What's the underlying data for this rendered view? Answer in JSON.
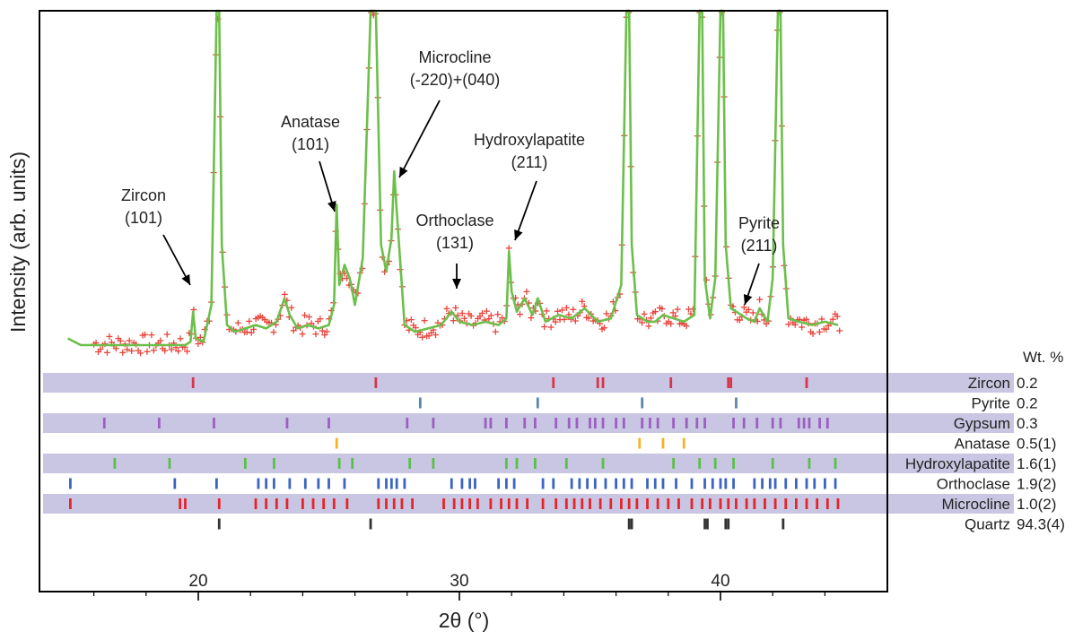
{
  "chart_data": {
    "type": "line",
    "title": "",
    "xlabel": "2θ (°)",
    "ylabel": "Intensity (arb. units)",
    "xlim": [
      15,
      45.5
    ],
    "ylim": [
      0,
      100
    ],
    "x_ticks": [
      20,
      30,
      40
    ],
    "x_tick_labels": [
      "20",
      "30",
      "40"
    ],
    "grid": false,
    "series": [
      {
        "name": "",
        "style": "observed-crosses",
        "color": "#e8453c"
      },
      {
        "name": "",
        "style": "calculated-line",
        "color": "#6cbf4a"
      }
    ],
    "profile_x": [
      15.0,
      15.5,
      16.0,
      16.5,
      17.0,
      17.5,
      18.0,
      18.5,
      19.0,
      19.5,
      19.7,
      19.8,
      19.9,
      20.2,
      20.5,
      20.7,
      20.8,
      20.9,
      21.1,
      21.4,
      21.8,
      22.2,
      22.6,
      23.0,
      23.3,
      23.5,
      23.8,
      24.2,
      24.6,
      25.0,
      25.2,
      25.3,
      25.4,
      25.6,
      25.8,
      26.0,
      26.3,
      26.6,
      26.7,
      26.8,
      27.0,
      27.2,
      27.4,
      27.5,
      27.6,
      27.9,
      28.3,
      28.8,
      29.3,
      29.7,
      30.0,
      30.5,
      31.0,
      31.5,
      31.8,
      31.9,
      32.0,
      32.2,
      32.5,
      32.8,
      33.0,
      33.3,
      33.8,
      34.3,
      34.8,
      35.3,
      35.8,
      36.2,
      36.4,
      36.5,
      36.6,
      36.8,
      37.2,
      37.5,
      37.8,
      38.2,
      38.6,
      39.0,
      39.2,
      39.3,
      39.4,
      39.6,
      39.8,
      40.0,
      40.1,
      40.2,
      40.4,
      40.6,
      41.0,
      41.3,
      41.5,
      41.8,
      42.0,
      42.2,
      42.3,
      42.4,
      42.6,
      43.0,
      43.5,
      44.0,
      44.5
    ],
    "profile_y": [
      2,
      0,
      0,
      0,
      0,
      0,
      0,
      0,
      0,
      0,
      1,
      10,
      2,
      1,
      12,
      100,
      100,
      30,
      6,
      4,
      5,
      6,
      5,
      7,
      14,
      9,
      5,
      6,
      5,
      6,
      12,
      42,
      18,
      24,
      20,
      12,
      26,
      100,
      100,
      100,
      30,
      22,
      32,
      52,
      40,
      6,
      4,
      5,
      6,
      10,
      7,
      6,
      7,
      6,
      8,
      28,
      16,
      10,
      14,
      9,
      14,
      7,
      9,
      8,
      11,
      7,
      8,
      18,
      100,
      100,
      30,
      9,
      7,
      7,
      9,
      8,
      7,
      9,
      100,
      100,
      20,
      8,
      20,
      100,
      100,
      30,
      11,
      10,
      8,
      7,
      11,
      7,
      20,
      100,
      100,
      30,
      8,
      7,
      6,
      7,
      6
    ],
    "peak_annotations": [
      {
        "label": "Zircon",
        "hkl": "(101)",
        "x": 19.8
      },
      {
        "label": "Anatase",
        "hkl": "(101)",
        "x": 25.3
      },
      {
        "label": "Microcline",
        "hkl": "(-220)+(040)",
        "x": 27.5
      },
      {
        "label": "Orthoclase",
        "hkl": "(131)",
        "x": 29.8
      },
      {
        "label": "Hydroxylapatite",
        "hkl": "(211)",
        "x": 31.9
      },
      {
        "label": "Pyrite",
        "hkl": "(211)",
        "x": 40.6
      }
    ],
    "phases_header": "Wt. %",
    "phases": [
      {
        "name": "Zircon",
        "wt": "0.2",
        "color": "#d9344a",
        "band": true,
        "ticks": [
          19.8,
          26.8,
          33.6,
          35.3,
          35.5,
          38.1,
          40.3,
          40.4,
          43.3
        ]
      },
      {
        "name": "Pyrite",
        "wt": "0.2",
        "color": "#5b86a8",
        "band": false,
        "ticks": [
          28.5,
          33.0,
          37.0,
          40.6
        ]
      },
      {
        "name": "Gypsum",
        "wt": "0.3",
        "color": "#9b5fc0",
        "band": true,
        "ticks": [
          16.4,
          18.5,
          20.6,
          23.4,
          25.0,
          28.0,
          29.0,
          31.0,
          31.2,
          31.8,
          32.5,
          32.9,
          33.7,
          34.2,
          34.5,
          35.0,
          35.2,
          35.5,
          36.0,
          36.3,
          37.0,
          37.3,
          37.6,
          38.2,
          38.7,
          39.1,
          39.4,
          40.5,
          40.9,
          41.4,
          42.0,
          42.3,
          43.0,
          43.2,
          43.4,
          43.8,
          44.1
        ]
      },
      {
        "name": "Anatase",
        "wt": "0.5(1)",
        "color": "#f5b324",
        "band": false,
        "ticks": [
          25.3,
          36.9,
          37.8,
          38.6
        ]
      },
      {
        "name": "Hydroxylapatite",
        "wt": "1.6(1)",
        "color": "#5bc04a",
        "band": true,
        "ticks": [
          16.8,
          18.9,
          21.8,
          22.9,
          25.4,
          25.9,
          28.1,
          29.0,
          31.8,
          32.2,
          32.9,
          34.1,
          35.5,
          38.2,
          39.2,
          39.8,
          40.5,
          42.0,
          43.4,
          44.4
        ]
      },
      {
        "name": "Orthoclase",
        "wt": "1.9(2)",
        "color": "#3c64c0",
        "band": false,
        "ticks": [
          15.1,
          19.1,
          20.7,
          22.3,
          22.6,
          22.9,
          23.5,
          24.1,
          24.6,
          25.0,
          25.6,
          26.9,
          27.2,
          27.4,
          27.6,
          27.9,
          29.7,
          30.1,
          30.4,
          30.6,
          31.5,
          31.8,
          32.1,
          33.2,
          33.6,
          34.3,
          34.6,
          34.9,
          35.2,
          35.6,
          36.0,
          36.3,
          36.6,
          37.2,
          37.5,
          37.8,
          38.3,
          38.9,
          39.4,
          39.7,
          40.0,
          40.2,
          40.5,
          41.3,
          41.6,
          41.9,
          42.1,
          42.5,
          42.9,
          43.3,
          43.6,
          44.0,
          44.4
        ]
      },
      {
        "name": "Microcline",
        "wt": "1.0(2)",
        "color": "#e5252c",
        "band": true,
        "ticks": [
          15.1,
          19.3,
          19.5,
          20.8,
          22.2,
          22.6,
          23.0,
          23.4,
          24.0,
          24.4,
          24.8,
          25.2,
          25.7,
          26.9,
          27.2,
          27.5,
          27.8,
          28.2,
          29.4,
          29.8,
          30.1,
          30.4,
          30.7,
          31.2,
          31.6,
          31.9,
          32.2,
          32.6,
          33.2,
          33.7,
          34.1,
          34.4,
          34.7,
          35.0,
          35.4,
          35.8,
          36.2,
          36.5,
          36.8,
          37.2,
          37.6,
          38.0,
          38.4,
          38.9,
          39.3,
          39.6,
          40.0,
          40.3,
          40.6,
          41.0,
          41.3,
          41.7,
          42.1,
          42.5,
          42.9,
          43.3,
          43.7,
          44.1,
          44.5
        ]
      },
      {
        "name": "Quartz",
        "wt": "94.3(4)",
        "color": "#333333",
        "band": false,
        "ticks": [
          20.8,
          26.6,
          36.5,
          36.6,
          39.4,
          39.5,
          40.2,
          40.3,
          42.4
        ]
      }
    ]
  }
}
